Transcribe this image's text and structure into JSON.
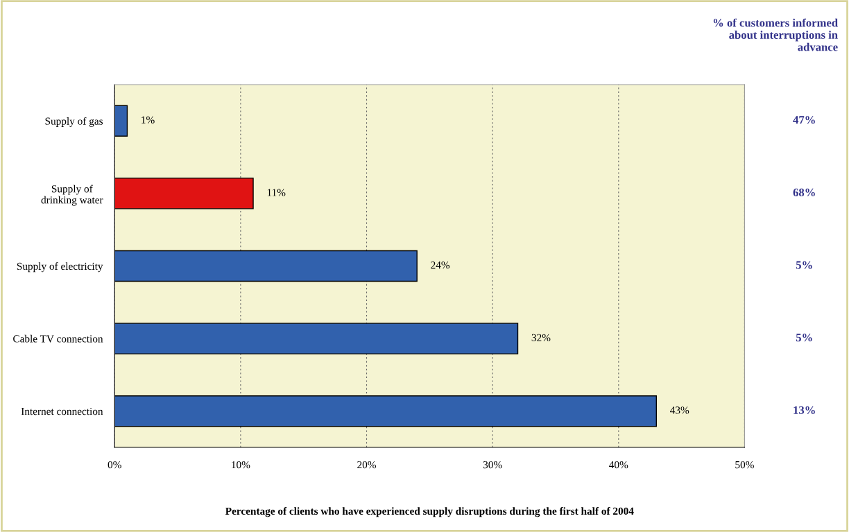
{
  "chart_data": {
    "type": "bar",
    "orientation": "horizontal",
    "xlabel": "Percentage of clients who have experienced supply disruptions during the first half of 2004",
    "categories": [
      "Supply of gas",
      "Supply of\ndrinking water",
      "Supply of electricity",
      "Cable TV connection",
      "Internet connection"
    ],
    "values": [
      1,
      11,
      24,
      32,
      43
    ],
    "colors": [
      "#3161ad",
      "#e01313",
      "#3161ad",
      "#3161ad",
      "#3161ad"
    ],
    "value_labels": [
      "1%",
      "11%",
      "24%",
      "32%",
      "43%"
    ],
    "xlim": [
      0,
      50
    ],
    "xticks": [
      {
        "value": 0,
        "label": "0%"
      },
      {
        "value": 10,
        "label": "10%"
      },
      {
        "value": 20,
        "label": "20%"
      },
      {
        "value": 30,
        "label": "30%"
      },
      {
        "value": 40,
        "label": "40%"
      },
      {
        "value": 50,
        "label": "50%"
      }
    ],
    "grid": "x",
    "legend": false,
    "annotations": [
      "% of customers informed\nabout interruptions in\nadvance",
      "47%",
      "68%",
      "5%",
      "5%",
      "13%"
    ]
  }
}
